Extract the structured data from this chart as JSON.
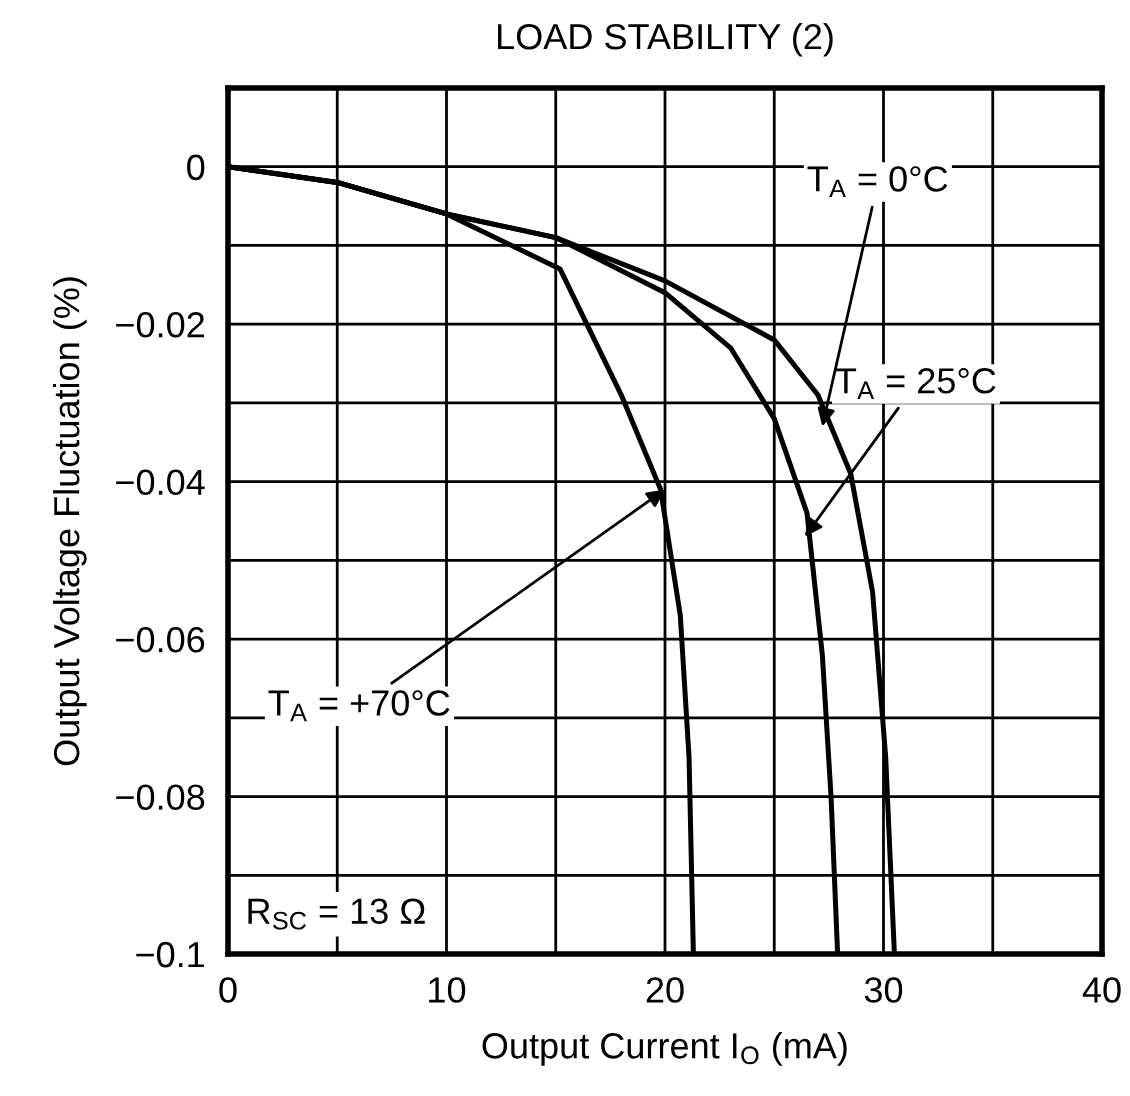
{
  "chart_data": {
    "type": "line",
    "title": "LOAD STABILITY (2)",
    "xlabel": "Output Current I$_{O}$ (mA)",
    "ylabel": "Output Voltage Fluctuation (%)",
    "series": [
      {
        "color": "#000000",
        "x": [
          0,
          5,
          10,
          15.2,
          18,
          19.8,
          20.7,
          21.1,
          21.3
        ],
        "values": [
          0,
          -0.002,
          -0.006,
          -0.013,
          -0.029,
          -0.041,
          -0.057,
          -0.075,
          -0.1
        ]
      },
      {
        "color": "#000000",
        "x": [
          0,
          5,
          10,
          15,
          20,
          23,
          25,
          26.5,
          27.2,
          27.6,
          27.9
        ],
        "values": [
          0,
          -0.002,
          -0.006,
          -0.009,
          -0.016,
          -0.023,
          -0.032,
          -0.044,
          -0.062,
          -0.08,
          -0.1
        ]
      },
      {
        "color": "#000000",
        "x": [
          0,
          5,
          10,
          15,
          20,
          25,
          27,
          28.5,
          29.5,
          30.1,
          30.5
        ],
        "values": [
          0,
          -0.002,
          -0.006,
          -0.009,
          -0.0145,
          -0.022,
          -0.029,
          -0.039,
          -0.054,
          -0.075,
          -0.1
        ]
      }
    ],
    "annotations": [
      {
        "text": "T$_{A}$ = +70°C",
        "x": 20,
        "y": -0.041
      },
      {
        "text": "T$_{A}$ = 25°C",
        "x": 26.4,
        "y": -0.047
      },
      {
        "text": "T$_{A}$ = 0°C",
        "x": 27.2,
        "y": -0.033
      },
      "R$_{SC}$ = 13 Ω"
    ],
    "xlim": [
      0,
      40
    ],
    "ylim": [
      -0.1,
      0.01
    ],
    "xticks": [
      0,
      {
        "value": 5,
        "label": null
      },
      10,
      {
        "value": 15,
        "label": null
      },
      20,
      {
        "value": 25,
        "label": null
      },
      30,
      {
        "value": 35,
        "label": null
      },
      40
    ],
    "yticks": [
      {
        "value": -0.1,
        "label": "−0.1"
      },
      {
        "value": -0.09,
        "label": null
      },
      {
        "value": -0.08,
        "label": "−0.08"
      },
      {
        "value": -0.07,
        "label": null
      },
      {
        "value": -0.06,
        "label": "−0.06"
      },
      {
        "value": -0.05,
        "label": null
      },
      {
        "value": -0.04,
        "label": "−0.04"
      },
      {
        "value": -0.03,
        "label": null
      },
      {
        "value": -0.02,
        "label": "−0.02"
      },
      {
        "value": -0.01,
        "label": null
      },
      0
    ],
    "grid": true
  }
}
